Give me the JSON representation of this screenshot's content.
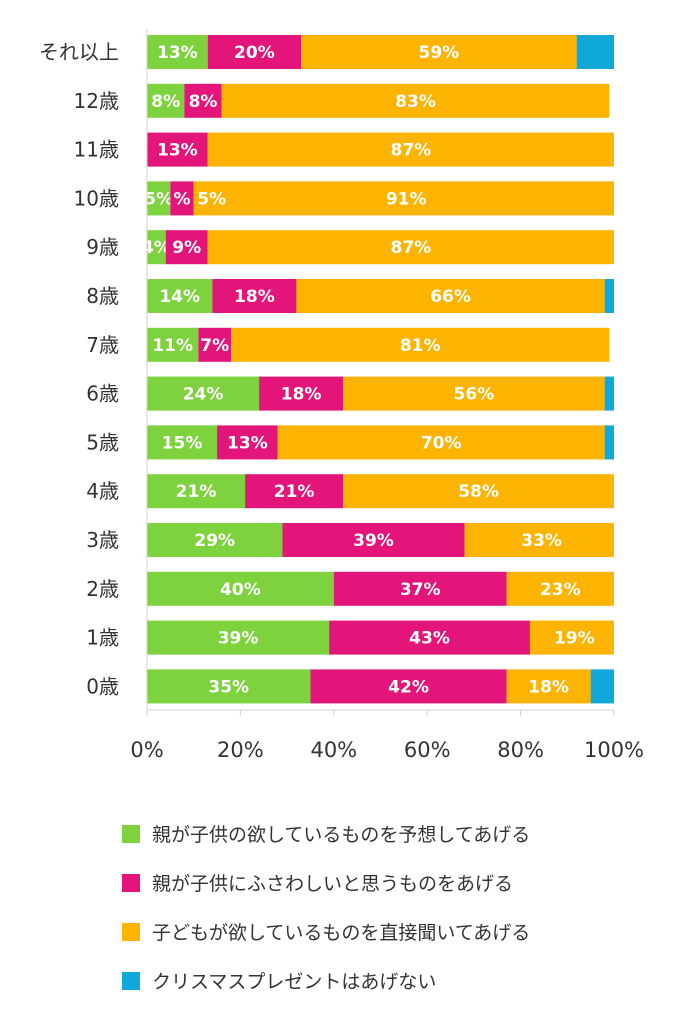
{
  "chart_data": {
    "type": "bar",
    "orientation": "horizontal",
    "stacked": true,
    "categories": [
      "それ以上",
      "12歳",
      "11歳",
      "10歳",
      "9歳",
      "8歳",
      "7歳",
      "6歳",
      "5歳",
      "4歳",
      "3歳",
      "2歳",
      "1歳",
      "0歳"
    ],
    "series": [
      {
        "name": "親が子供の欲しているものを予想してあげる",
        "color": "#7ED23E",
        "values": [
          13,
          8,
          0,
          5,
          4,
          14,
          11,
          24,
          15,
          21,
          29,
          40,
          39,
          35
        ],
        "labels": [
          "13%",
          "8%",
          "",
          "5%",
          "4%",
          "14%",
          "11%",
          "24%",
          "15%",
          "21%",
          "29%",
          "40%",
          "39%",
          "35%"
        ]
      },
      {
        "name": "親が子供にふさわしいと思うものをあげる",
        "color": "#E3157A",
        "values": [
          20,
          8,
          13,
          5,
          9,
          18,
          7,
          18,
          13,
          21,
          39,
          37,
          43,
          42
        ],
        "labels": [
          "20%",
          "8%",
          "13%",
          "%",
          "9%",
          "18%",
          "7%",
          "18%",
          "13%",
          "21%",
          "39%",
          "37%",
          "43%",
          "42%"
        ]
      },
      {
        "name": "子どもが欲しているものを直接聞いてあげる",
        "color": "#FDB401",
        "values": [
          59,
          83,
          87,
          91,
          87,
          66,
          81,
          56,
          70,
          58,
          33,
          23,
          19,
          18
        ],
        "labels": [
          "59%",
          "83%",
          "87%",
          "91%",
          "87%",
          "66%",
          "81%",
          "56%",
          "70%",
          "58%",
          "33%",
          "23%",
          "19%",
          "18%"
        ],
        "extra_labels": [
          "",
          "",
          "",
          "5%",
          "",
          "",
          "",
          "",
          "",
          "",
          "",
          "",
          "",
          ""
        ]
      },
      {
        "name": "クリスマスプレゼントはあげない",
        "color": "#0FA8D8",
        "values": [
          9,
          0,
          0,
          0,
          0,
          2,
          0,
          3,
          2,
          0,
          0,
          0,
          0,
          5
        ],
        "labels": [
          "",
          "",
          "",
          "",
          "",
          "",
          "",
          "",
          "",
          "",
          "",
          "",
          "",
          ""
        ]
      }
    ],
    "x_ticks": [
      "0%",
      "20%",
      "40%",
      "60%",
      "80%",
      "100%"
    ],
    "xlim": [
      0,
      100
    ],
    "title": "",
    "xlabel": "",
    "ylabel": "",
    "legend_position": "bottom",
    "grid": false
  }
}
